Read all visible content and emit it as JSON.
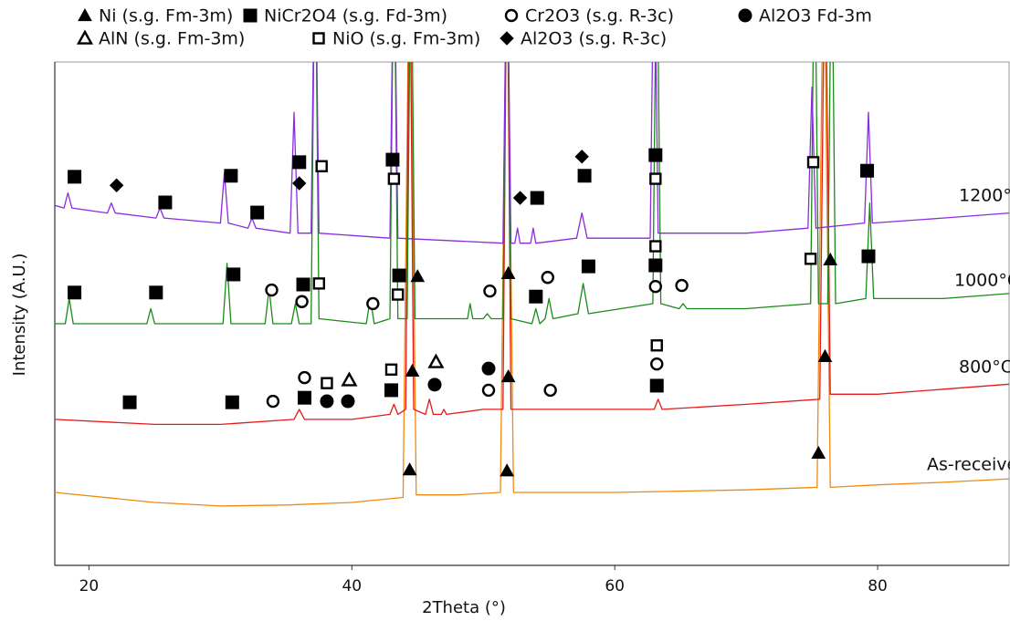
{
  "chart_data": {
    "type": "line",
    "x_label": "2Theta (°)",
    "y_label": "Intensity (A.U.)",
    "xlim": [
      17.4,
      90
    ],
    "xticks": [
      20,
      40,
      60,
      80
    ],
    "ylim": [
      0,
      100
    ],
    "series": [
      {
        "name": "As-received",
        "color": "#f0890f",
        "x": [
          17.4,
          25,
          30,
          35,
          40,
          43.9,
          44.4,
          44.9,
          48,
          51.3,
          51.8,
          52.3,
          60,
          70,
          75.4,
          75.9,
          76.4,
          80,
          85,
          90
        ],
        "values": [
          14.5,
          12.5,
          11.8,
          12,
          12.5,
          13.5,
          130,
          14,
          14,
          14.5,
          130,
          14.5,
          14.5,
          15,
          15.5,
          130,
          15.5,
          16,
          16.5,
          17.2
        ]
      },
      {
        "name": "800°C",
        "color": "#e31a1c",
        "x": [
          17.4,
          25,
          30,
          35.6,
          36,
          36.4,
          40,
          42.9,
          43.2,
          43.5,
          44.1,
          44.4,
          44.7,
          45.6,
          45.9,
          46.2,
          46.8,
          47,
          47.2,
          50,
          51.5,
          51.8,
          52.1,
          55,
          60,
          63,
          63.3,
          63.6,
          70,
          75.6,
          76,
          76.4,
          80,
          85,
          90
        ],
        "values": [
          29,
          28,
          28,
          29,
          31,
          29,
          29,
          30,
          32,
          30,
          31,
          130,
          31,
          30,
          33,
          30,
          30,
          31,
          30,
          31,
          31,
          130,
          31,
          31,
          31,
          31,
          33,
          31,
          32,
          33,
          130,
          34,
          34,
          35,
          36
        ]
      },
      {
        "name": "1000°C",
        "color": "#1a8a1a",
        "x": [
          17.4,
          18.2,
          18.5,
          18.8,
          24.4,
          24.7,
          25,
          30.2,
          30.5,
          30.8,
          33.4,
          33.7,
          34,
          35.4,
          35.7,
          36,
          36.9,
          37.2,
          37.5,
          41.1,
          41.4,
          41.7,
          42.9,
          43.2,
          43.5,
          44.2,
          44.5,
          44.8,
          48.8,
          49,
          49.2,
          50,
          50.3,
          50.6,
          51.5,
          51.8,
          52.1,
          53.7,
          54,
          54.3,
          54.7,
          55,
          55.3,
          57.2,
          57.6,
          58,
          62.9,
          63.2,
          63.5,
          64.9,
          65.2,
          65.5,
          70,
          74.9,
          75.2,
          75.5,
          76.2,
          76.5,
          76.8,
          79.1,
          79.4,
          79.7,
          85,
          90
        ],
        "values": [
          48,
          48,
          53,
          48,
          48,
          51,
          48,
          48,
          60,
          48,
          48,
          55,
          48,
          48,
          52,
          48,
          48,
          130,
          49,
          48,
          53,
          48,
          49,
          130,
          49,
          49,
          130,
          49,
          49,
          52,
          49,
          49,
          50,
          49,
          49,
          130,
          49,
          48,
          51,
          48,
          49,
          53,
          49,
          50,
          56,
          50,
          52,
          130,
          52,
          51,
          52,
          51,
          51,
          52,
          130,
          52,
          52,
          130,
          52,
          53,
          72,
          53,
          53,
          54
        ]
      },
      {
        "name": "1200°C",
        "color": "#8a2be2",
        "x": [
          17.4,
          18.1,
          18.4,
          18.7,
          21.4,
          21.7,
          22,
          25.1,
          25.4,
          25.7,
          30,
          30.3,
          30.6,
          32.1,
          32.4,
          32.7,
          35.3,
          35.6,
          35.9,
          36.9,
          37.2,
          37.5,
          42.9,
          43.2,
          43.5,
          51.5,
          51.8,
          52.1,
          52.4,
          52.6,
          52.8,
          53.6,
          53.8,
          54,
          57.1,
          57.5,
          57.9,
          62.7,
          63,
          63.3,
          70,
          74.7,
          75,
          75.3,
          79,
          79.3,
          79.6,
          85,
          90
        ],
        "values": [
          71.5,
          71,
          74,
          71,
          70,
          72,
          70,
          69,
          71,
          69,
          68,
          78,
          68,
          67,
          69,
          67,
          66,
          90,
          66,
          66,
          130,
          66,
          65,
          130,
          65,
          64,
          130,
          64,
          64,
          67,
          64,
          64,
          67,
          64,
          65,
          70,
          65,
          65,
          130,
          66,
          66,
          67,
          95,
          67,
          68,
          90,
          68,
          69,
          70
        ]
      }
    ],
    "phases": [
      {
        "name": "Ni (s.g. Fm-3m)",
        "symbol": "triangle-filled",
        "x": [
          45.0,
          51.9,
          76.4,
          44.6,
          51.9,
          76.0,
          44.4,
          51.8,
          75.5
        ],
        "y": [
          57.4,
          58.0,
          60.7,
          38.6,
          37.5,
          41.5,
          19.0,
          18.8,
          22.3
        ]
      },
      {
        "name": "NiCr2O4 (s.g. Fd-3m)",
        "symbol": "square-filled",
        "x": [
          18.9,
          25.8,
          30.8,
          32.8,
          36.0,
          43.1,
          54.1,
          57.7,
          63.1,
          79.2,
          18.9,
          25.1,
          31.0,
          36.3,
          43.6,
          54.0,
          58.0,
          63.1,
          79.3,
          23.1,
          30.9,
          36.4,
          43.0,
          63.2
        ],
        "y": [
          77.2,
          72.1,
          77.4,
          70.1,
          80.1,
          80.6,
          73.0,
          77.4,
          81.5,
          78.4,
          54.2,
          54.2,
          57.8,
          55.8,
          57.6,
          53.4,
          59.4,
          59.6,
          61.4,
          32.4,
          32.4,
          33.3,
          34.8,
          35.7
        ]
      },
      {
        "name": "Cr2O3 (s.g. R-3c)",
        "symbol": "circle-open",
        "x": [
          33.9,
          36.2,
          41.6,
          50.5,
          54.9,
          63.1,
          65.1,
          34.0,
          36.4,
          50.4,
          55.1,
          63.2
        ],
        "y": [
          54.7,
          52.4,
          52.0,
          54.5,
          57.2,
          55.4,
          55.6,
          32.6,
          37.3,
          34.8,
          34.8,
          40.0
        ]
      },
      {
        "name": "Al2O3 Fd-3m",
        "symbol": "circle-filled",
        "x": [
          38.1,
          39.7,
          46.3,
          50.4
        ],
        "y": [
          32.6,
          32.6,
          35.9,
          39.1
        ]
      },
      {
        "name": "AlN (s.g. Fm-3m)",
        "symbol": "triangle-open",
        "x": [
          39.8,
          46.4
        ],
        "y": [
          36.8,
          40.4
        ]
      },
      {
        "name": "NiO (s.g. Fm-3m)",
        "symbol": "square-open",
        "x": [
          37.7,
          43.2,
          63.1,
          75.1,
          37.5,
          43.5,
          63.1,
          74.9,
          38.1,
          43.0,
          63.2
        ],
        "y": [
          79.3,
          76.8,
          76.8,
          80.1,
          56.0,
          53.8,
          63.4,
          60.9,
          36.2,
          38.9,
          43.7
        ]
      },
      {
        "name": "Al2O3 (s.g. R-3c)",
        "symbol": "diamond-filled",
        "x": [
          22.1,
          36.0,
          57.5,
          52.8
        ],
        "y": [
          75.5,
          75.9,
          81.2,
          73.0
        ]
      }
    ]
  }
}
